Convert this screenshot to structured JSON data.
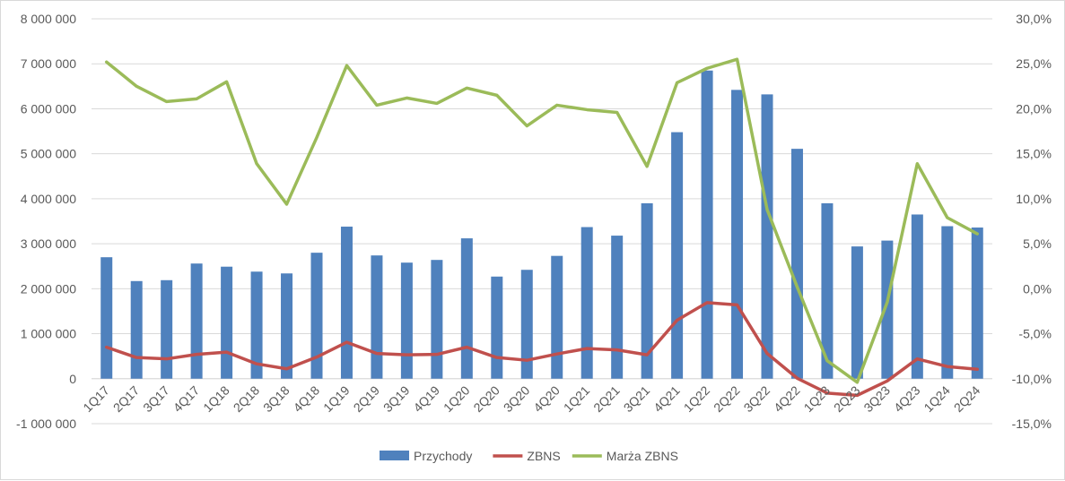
{
  "chart_data": {
    "type": "bar",
    "categories": [
      "1Q17",
      "2Q17",
      "3Q17",
      "4Q17",
      "1Q18",
      "2Q18",
      "3Q18",
      "4Q18",
      "1Q19",
      "2Q19",
      "3Q19",
      "4Q19",
      "1Q20",
      "2Q20",
      "3Q20",
      "4Q20",
      "1Q21",
      "2Q21",
      "3Q21",
      "4Q21",
      "1Q22",
      "2Q22",
      "3Q22",
      "4Q22",
      "1Q23",
      "2Q23",
      "3Q23",
      "4Q23",
      "1Q24",
      "2Q24"
    ],
    "series": [
      {
        "name": "Przychody",
        "type": "bar",
        "axis": "left",
        "color": "#4f81bd",
        "values": [
          2700000,
          2170000,
          2190000,
          2560000,
          2490000,
          2380000,
          2340000,
          2800000,
          3380000,
          2740000,
          2580000,
          2640000,
          3120000,
          2270000,
          2420000,
          2730000,
          3370000,
          3180000,
          3900000,
          5480000,
          6850000,
          6420000,
          6320000,
          5110000,
          3900000,
          2940000,
          3070000,
          3650000,
          3390000,
          3360000
        ]
      },
      {
        "name": "ZBNS",
        "type": "line",
        "axis": "left",
        "color": "#c0504d",
        "values": [
          700000,
          470000,
          440000,
          540000,
          590000,
          330000,
          220000,
          480000,
          810000,
          560000,
          530000,
          540000,
          700000,
          470000,
          410000,
          550000,
          670000,
          640000,
          530000,
          1300000,
          1690000,
          1640000,
          560000,
          10000,
          -320000,
          -370000,
          -50000,
          440000,
          270000,
          210000
        ]
      },
      {
        "name": "Marża ZBNS",
        "type": "line",
        "axis": "right",
        "color": "#9bbb59",
        "values": [
          25.2,
          22.5,
          20.8,
          21.1,
          23.0,
          13.9,
          9.4,
          16.8,
          24.8,
          20.4,
          21.2,
          20.6,
          22.3,
          21.5,
          18.1,
          20.4,
          19.9,
          19.6,
          13.6,
          22.9,
          24.5,
          25.5,
          8.8,
          0.2,
          -8.0,
          -10.4,
          -1.5,
          13.9,
          7.9,
          6.1
        ]
      }
    ],
    "y_left": {
      "ylim": [
        -1000000,
        8000000
      ],
      "ticks": [
        -1000000,
        0,
        1000000,
        2000000,
        3000000,
        4000000,
        5000000,
        6000000,
        7000000,
        8000000
      ],
      "tick_labels": [
        "-1 000 000",
        "0",
        "1 000 000",
        "2 000 000",
        "3 000 000",
        "4 000 000",
        "5 000 000",
        "6 000 000",
        "7 000 000",
        "8 000 000"
      ]
    },
    "y_right": {
      "ylim": [
        -15,
        30
      ],
      "ticks": [
        -15,
        -10,
        -5,
        0,
        5,
        10,
        15,
        20,
        25,
        30
      ],
      "tick_labels": [
        "-15,0%",
        "-10,0%",
        "-5,0%",
        "0,0%",
        "5,0%",
        "10,0%",
        "15,0%",
        "20,0%",
        "25,0%",
        "30,0%"
      ]
    },
    "grid": true,
    "legend_position": "bottom",
    "title": "",
    "xlabel": "",
    "ylabel": ""
  }
}
